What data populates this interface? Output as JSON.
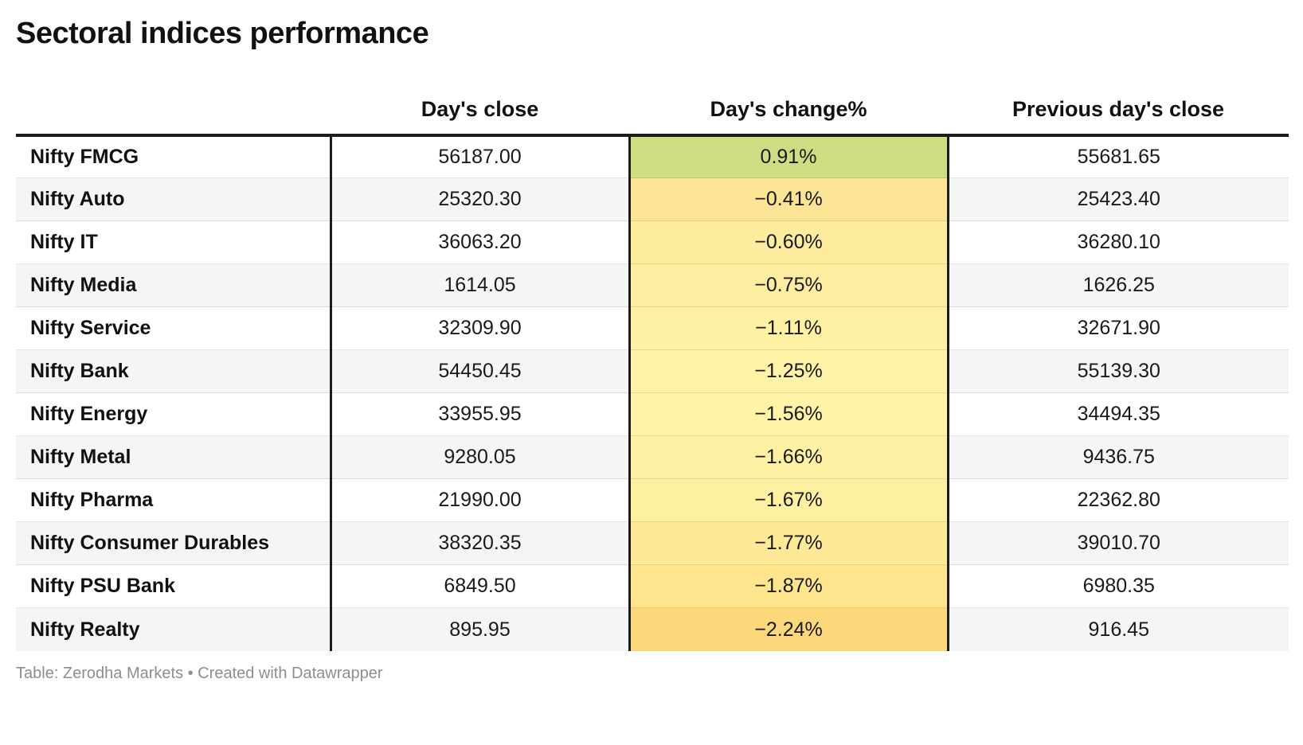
{
  "title": "Sectoral indices performance",
  "table": {
    "columns": {
      "label": "",
      "close": "Day's close",
      "change": "Day's change%",
      "prev": "Previous day's close"
    },
    "rows": [
      {
        "name": "Nifty FMCG",
        "close": "56187.00",
        "change": "0.91%",
        "prev": "55681.65",
        "change_bg": "#cfdc82"
      },
      {
        "name": "Nifty Auto",
        "close": "25320.30",
        "change": "−0.41%",
        "prev": "25423.40",
        "change_bg": "#fbe495"
      },
      {
        "name": "Nifty IT",
        "close": "36063.20",
        "change": "−0.60%",
        "prev": "36280.10",
        "change_bg": "#fdec9d"
      },
      {
        "name": "Nifty Media",
        "close": "1614.05",
        "change": "−0.75%",
        "prev": "1626.25",
        "change_bg": "#fdeda0"
      },
      {
        "name": "Nifty Service",
        "close": "32309.90",
        "change": "−1.11%",
        "prev": "32671.90",
        "change_bg": "#fef1a4"
      },
      {
        "name": "Nifty Bank",
        "close": "54450.45",
        "change": "−1.25%",
        "prev": "55139.30",
        "change_bg": "#fef2a6"
      },
      {
        "name": "Nifty Energy",
        "close": "33955.95",
        "change": "−1.56%",
        "prev": "34494.35",
        "change_bg": "#fef3a7"
      },
      {
        "name": "Nifty Metal",
        "close": "9280.05",
        "change": "−1.66%",
        "prev": "9436.75",
        "change_bg": "#fef1a3"
      },
      {
        "name": "Nifty Pharma",
        "close": "21990.00",
        "change": "−1.67%",
        "prev": "22362.80",
        "change_bg": "#fef0a1"
      },
      {
        "name": "Nifty Consumer Durables",
        "close": "38320.35",
        "change": "−1.77%",
        "prev": "39010.70",
        "change_bg": "#feea96"
      },
      {
        "name": "Nifty PSU Bank",
        "close": "6849.50",
        "change": "−1.87%",
        "prev": "6980.35",
        "change_bg": "#fee48d"
      },
      {
        "name": "Nifty Realty",
        "close": "895.95",
        "change": "−2.24%",
        "prev": "916.45",
        "change_bg": "#fdd87b"
      }
    ],
    "colors": {
      "positive_cell": "#cfdc82",
      "most_negative_cell": "#fdd87b",
      "rule": "#1c1c1c",
      "stripe": "#f5f5f5"
    }
  },
  "footer": {
    "text": "Table: Zerodha Markets • Created with Datawrapper"
  },
  "chart_data": {
    "type": "table",
    "title": "Sectoral indices performance",
    "columns": [
      "",
      "Day's close",
      "Day's change%",
      "Previous day's close"
    ],
    "rows": [
      [
        "Nifty FMCG",
        56187.0,
        0.91,
        55681.65
      ],
      [
        "Nifty Auto",
        25320.3,
        -0.41,
        25423.4
      ],
      [
        "Nifty IT",
        36063.2,
        -0.6,
        36280.1
      ],
      [
        "Nifty Media",
        1614.05,
        -0.75,
        1626.25
      ],
      [
        "Nifty Service",
        32309.9,
        -1.11,
        32671.9
      ],
      [
        "Nifty Bank",
        54450.45,
        -1.25,
        55139.3
      ],
      [
        "Nifty Energy",
        33955.95,
        -1.56,
        34494.35
      ],
      [
        "Nifty Metal",
        9280.05,
        -1.66,
        9436.75
      ],
      [
        "Nifty Pharma",
        21990.0,
        -1.67,
        22362.8
      ],
      [
        "Nifty Consumer Durables",
        38320.35,
        -1.77,
        39010.7
      ],
      [
        "Nifty PSU Bank",
        6849.5,
        -1.87,
        6980.35
      ],
      [
        "Nifty Realty",
        895.95,
        -2.24,
        916.45
      ]
    ],
    "heatmap_column": "Day's change%",
    "heatmap_scale": "green (positive) → pale yellow → orange (most negative)",
    "source": "Table: Zerodha Markets • Created with Datawrapper"
  }
}
